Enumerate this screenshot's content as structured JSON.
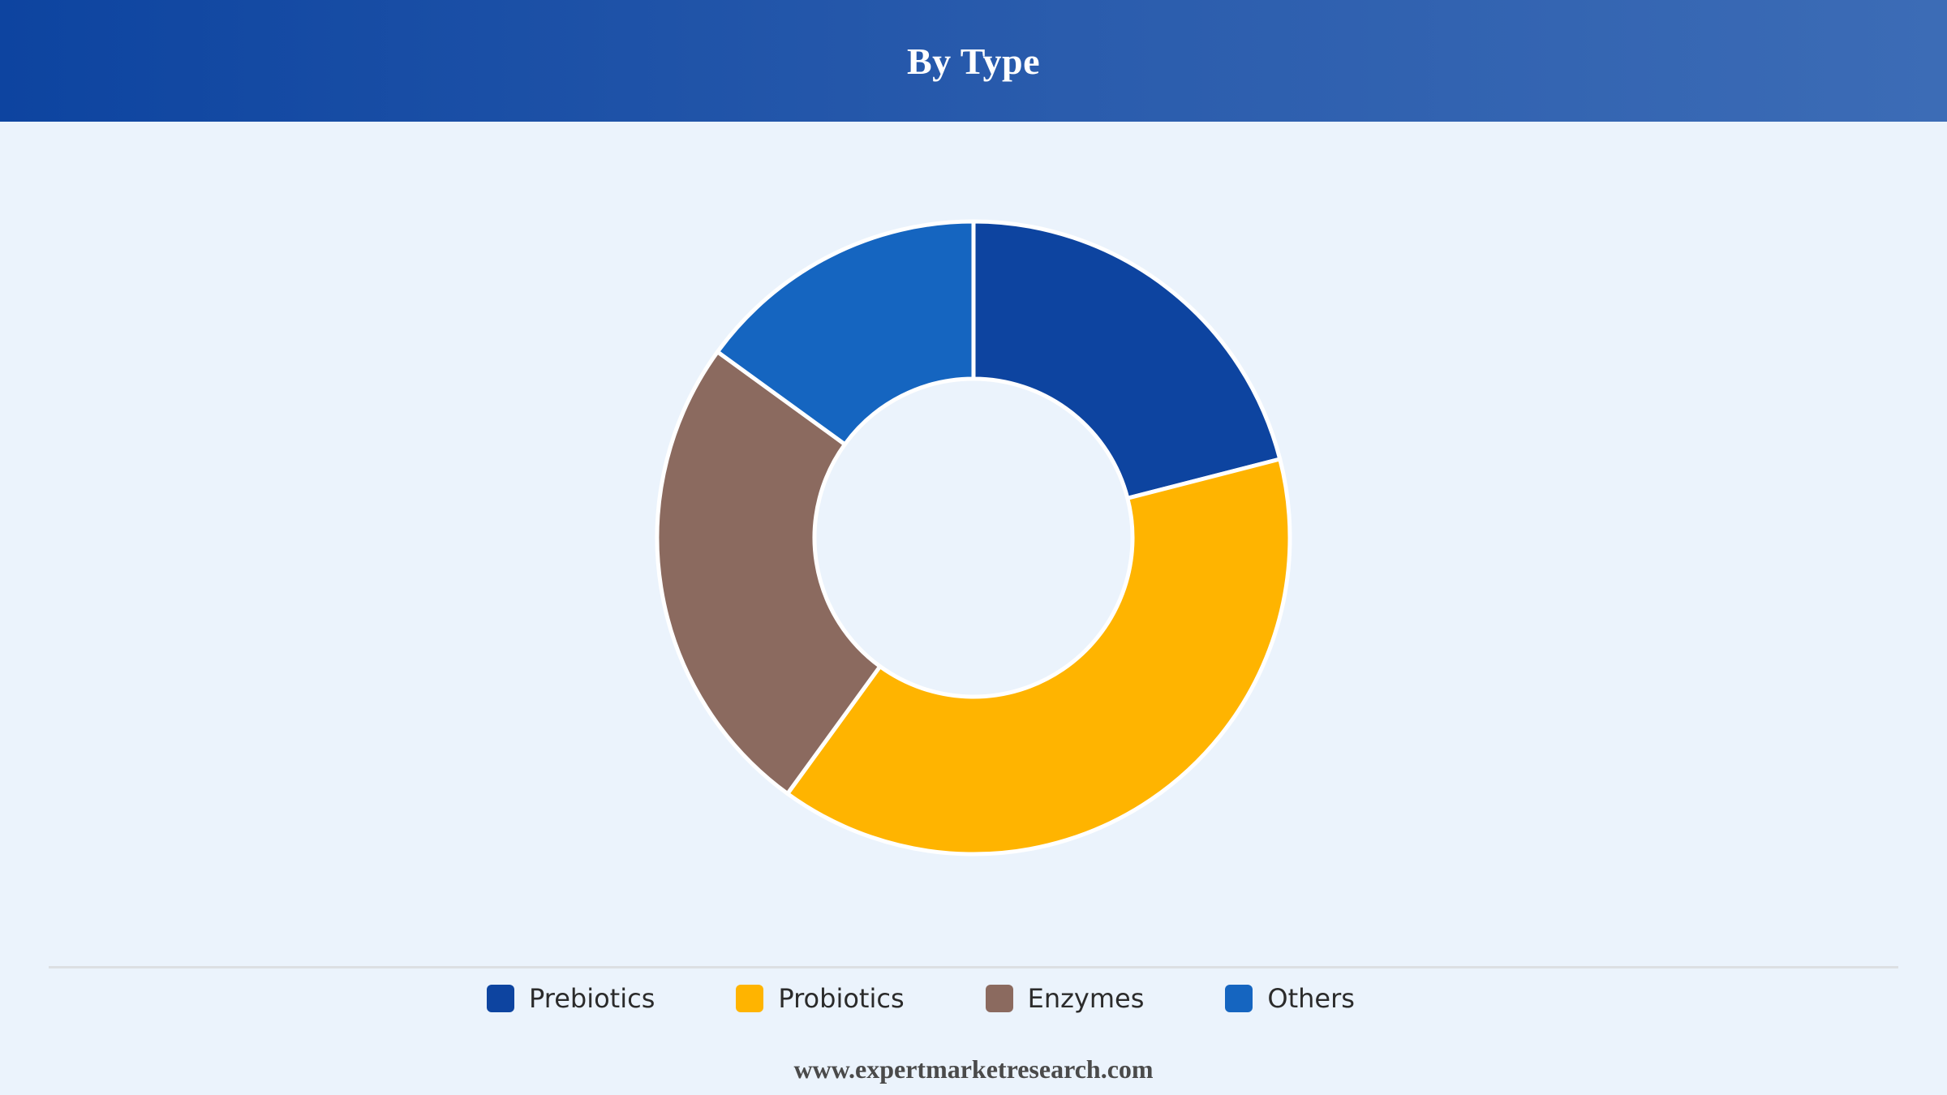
{
  "header": {
    "title": "By Type"
  },
  "chart_data": {
    "type": "pie",
    "donut": true,
    "categories": [
      "Prebiotics",
      "Probiotics",
      "Enzymes",
      "Others"
    ],
    "values": [
      21,
      39,
      25,
      15
    ],
    "colors": [
      "#0d44a0",
      "#ffb400",
      "#8b6a5f",
      "#1565c0"
    ],
    "legend_position": "bottom"
  },
  "footer": {
    "url": "www.expertmarketresearch.com"
  }
}
